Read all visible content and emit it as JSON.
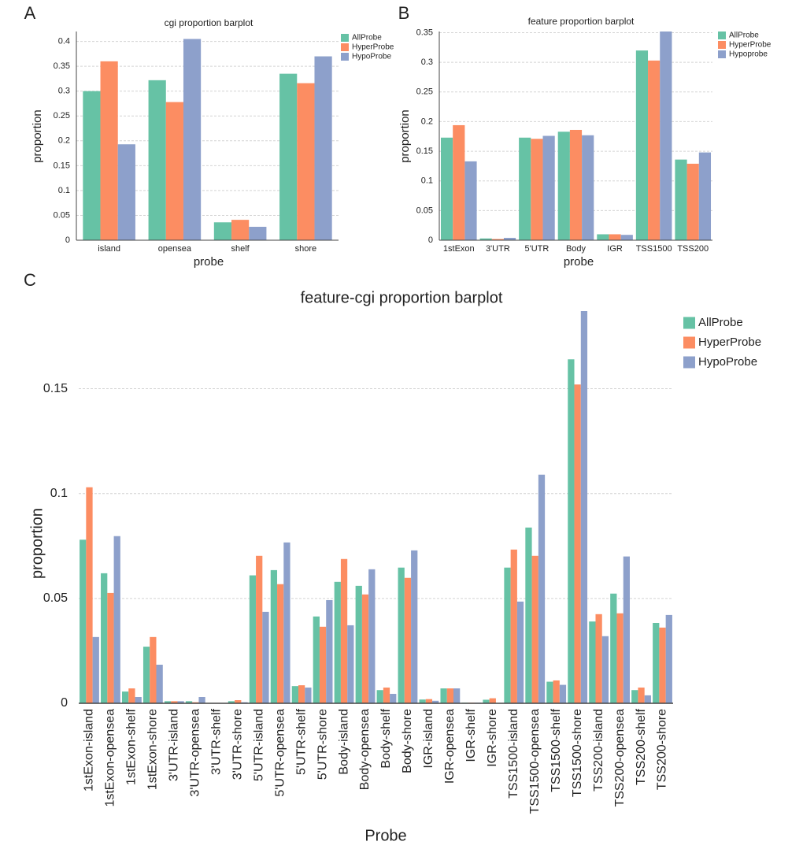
{
  "chart_data": [
    {
      "type": "bar",
      "panel": "A",
      "title": "cgi proportion barplot",
      "x_label": "probe",
      "y_label": "proportion",
      "categories": [
        "island",
        "opensea",
        "shelf",
        "shore"
      ],
      "series": [
        {
          "name": "AllProbe",
          "color": "#66c2a5",
          "values": [
            0.3,
            0.322,
            0.036,
            0.335
          ]
        },
        {
          "name": "HyperProbe",
          "color": "#fc8d62",
          "values": [
            0.36,
            0.278,
            0.041,
            0.316
          ]
        },
        {
          "name": "HypoProbe",
          "color": "#8da0cb",
          "values": [
            0.193,
            0.405,
            0.027,
            0.37
          ]
        }
      ],
      "ylim": [
        0,
        0.42
      ],
      "yticks": [
        0,
        0.05,
        0.1,
        0.15,
        0.2,
        0.25,
        0.3,
        0.35,
        0.4
      ],
      "grid": true,
      "legend": "top-right"
    },
    {
      "type": "bar",
      "panel": "B",
      "title": "feature proportion barplot",
      "x_label": "probe",
      "y_label": "proportion",
      "categories": [
        "1stExon",
        "3'UTR",
        "5'UTR",
        "Body",
        "IGR",
        "TSS1500",
        "TSS200"
      ],
      "series": [
        {
          "name": "AllProbe",
          "color": "#66c2a5",
          "values": [
            0.173,
            0.003,
            0.173,
            0.183,
            0.01,
            0.32,
            0.136
          ]
        },
        {
          "name": "HyperProbe",
          "color": "#fc8d62",
          "values": [
            0.194,
            0.002,
            0.171,
            0.186,
            0.01,
            0.303,
            0.129
          ]
        },
        {
          "name": "Hypoprobe",
          "color": "#8da0cb",
          "values": [
            0.133,
            0.004,
            0.176,
            0.177,
            0.009,
            0.352,
            0.148
          ]
        }
      ],
      "ylim": [
        0,
        0.352
      ],
      "yticks": [
        0,
        0.05,
        0.1,
        0.15,
        0.2,
        0.25,
        0.3,
        0.35
      ],
      "grid": true,
      "legend": "top-right"
    },
    {
      "type": "bar",
      "panel": "C",
      "title": "feature-cgi proportion barplot",
      "x_label": "Probe",
      "y_label": "proportion",
      "categories": [
        "1stExon-island",
        "1stExon-opensea",
        "1stExon-shelf",
        "1stExon-shore",
        "3'UTR-island",
        "3'UTR-opensea",
        "3'UTR-shelf",
        "3'UTR-shore",
        "5'UTR-island",
        "5'UTR-opensea",
        "5'UTR-shelf",
        "5'UTR-shore",
        "Body-island",
        "Body-opensea",
        "Body-shelf",
        "Body-shore",
        "IGR-island",
        "IGR-opensea",
        "IGR-shelf",
        "IGR-shore",
        "TSS1500-island",
        "TSS1500-opensea",
        "TSS1500-shelf",
        "TSS1500-shore",
        "TSS200-island",
        "TSS200-opensea",
        "TSS200-shelf",
        "TSS200-shore"
      ],
      "series": [
        {
          "name": "AllProbe",
          "color": "#66c2a5",
          "values": [
            0.078,
            0.062,
            0.0056,
            0.027,
            0.001,
            0.001,
            0.0002,
            0.001,
            0.061,
            0.0635,
            0.0082,
            0.0414,
            0.0579,
            0.056,
            0.0063,
            0.0647,
            0.0018,
            0.0071,
            0.0003,
            0.0017,
            0.0647,
            0.0838,
            0.0103,
            0.164,
            0.039,
            0.0523,
            0.0063,
            0.0383
          ]
        },
        {
          "name": "HyperProbe",
          "color": "#fc8d62",
          "values": [
            0.103,
            0.0526,
            0.0071,
            0.0316,
            0.001,
            0.0005,
            0.0002,
            0.0015,
            0.0703,
            0.0568,
            0.0086,
            0.0365,
            0.0688,
            0.0519,
            0.0075,
            0.0598,
            0.002,
            0.0071,
            0.0003,
            0.0024,
            0.0733,
            0.0703,
            0.0109,
            0.152,
            0.0425,
            0.0429,
            0.0075,
            0.0361
          ]
        },
        {
          "name": "HypoProbe",
          "color": "#8da0cb",
          "values": [
            0.0316,
            0.0797,
            0.003,
            0.0184,
            0.001,
            0.003,
            0.0001,
            0.0005,
            0.0436,
            0.0767,
            0.0075,
            0.0492,
            0.0372,
            0.0639,
            0.0045,
            0.0729,
            0.0012,
            0.0071,
            0.0003,
            0,
            0.0485,
            0.109,
            0.0088,
            0.187,
            0.032,
            0.07,
            0.0038,
            0.0421
          ]
        }
      ],
      "ylim": [
        0,
        0.187
      ],
      "yticks": [
        0,
        0.05,
        0.1,
        0.15
      ],
      "grid": true,
      "legend": "top-right"
    }
  ]
}
